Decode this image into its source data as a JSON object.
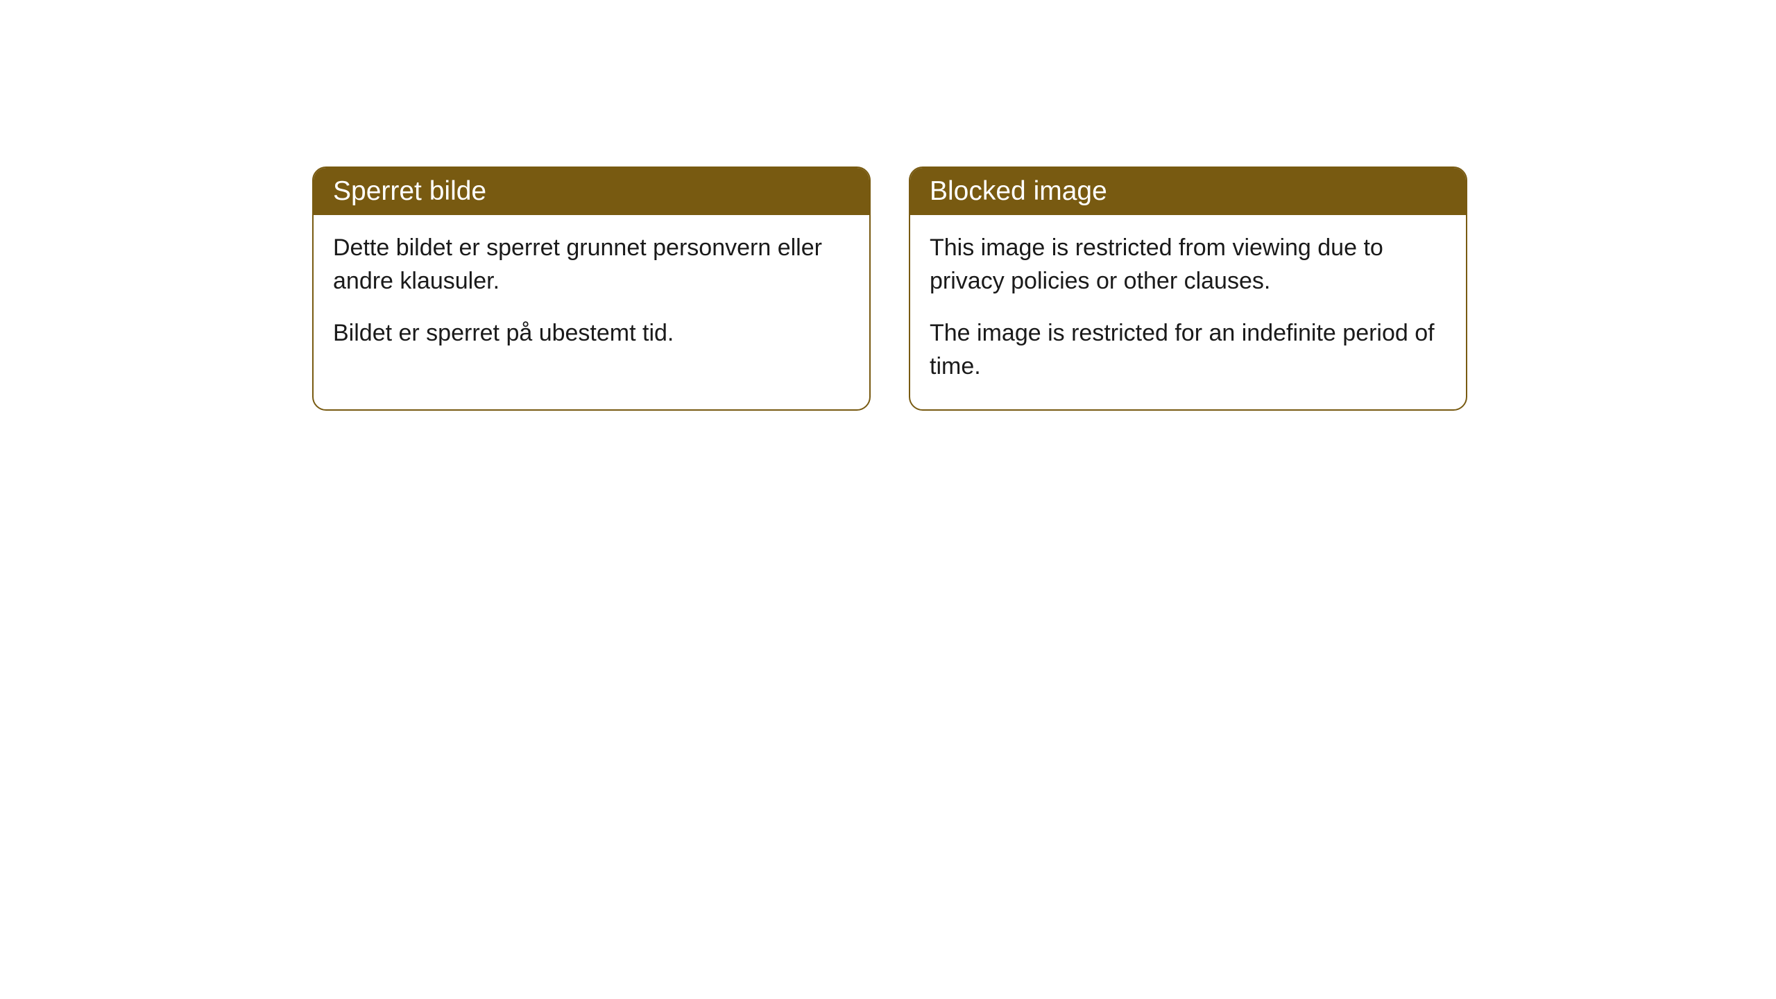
{
  "cards": [
    {
      "title": "Sperret bilde",
      "paragraph1": "Dette bildet er sperret grunnet personvern eller andre klausuler.",
      "paragraph2": "Bildet er sperret på ubestemt tid."
    },
    {
      "title": "Blocked image",
      "paragraph1": "This image is restricted from viewing due to privacy policies or other clauses.",
      "paragraph2": "The image is restricted for an indefinite period of time."
    }
  ],
  "styling": {
    "header_background": "#785a11",
    "header_text_color": "#ffffff",
    "border_color": "#785a11",
    "body_background": "#ffffff",
    "body_text_color": "#1a1a1a",
    "border_radius": 20,
    "header_font_size": 39,
    "body_font_size": 34
  }
}
